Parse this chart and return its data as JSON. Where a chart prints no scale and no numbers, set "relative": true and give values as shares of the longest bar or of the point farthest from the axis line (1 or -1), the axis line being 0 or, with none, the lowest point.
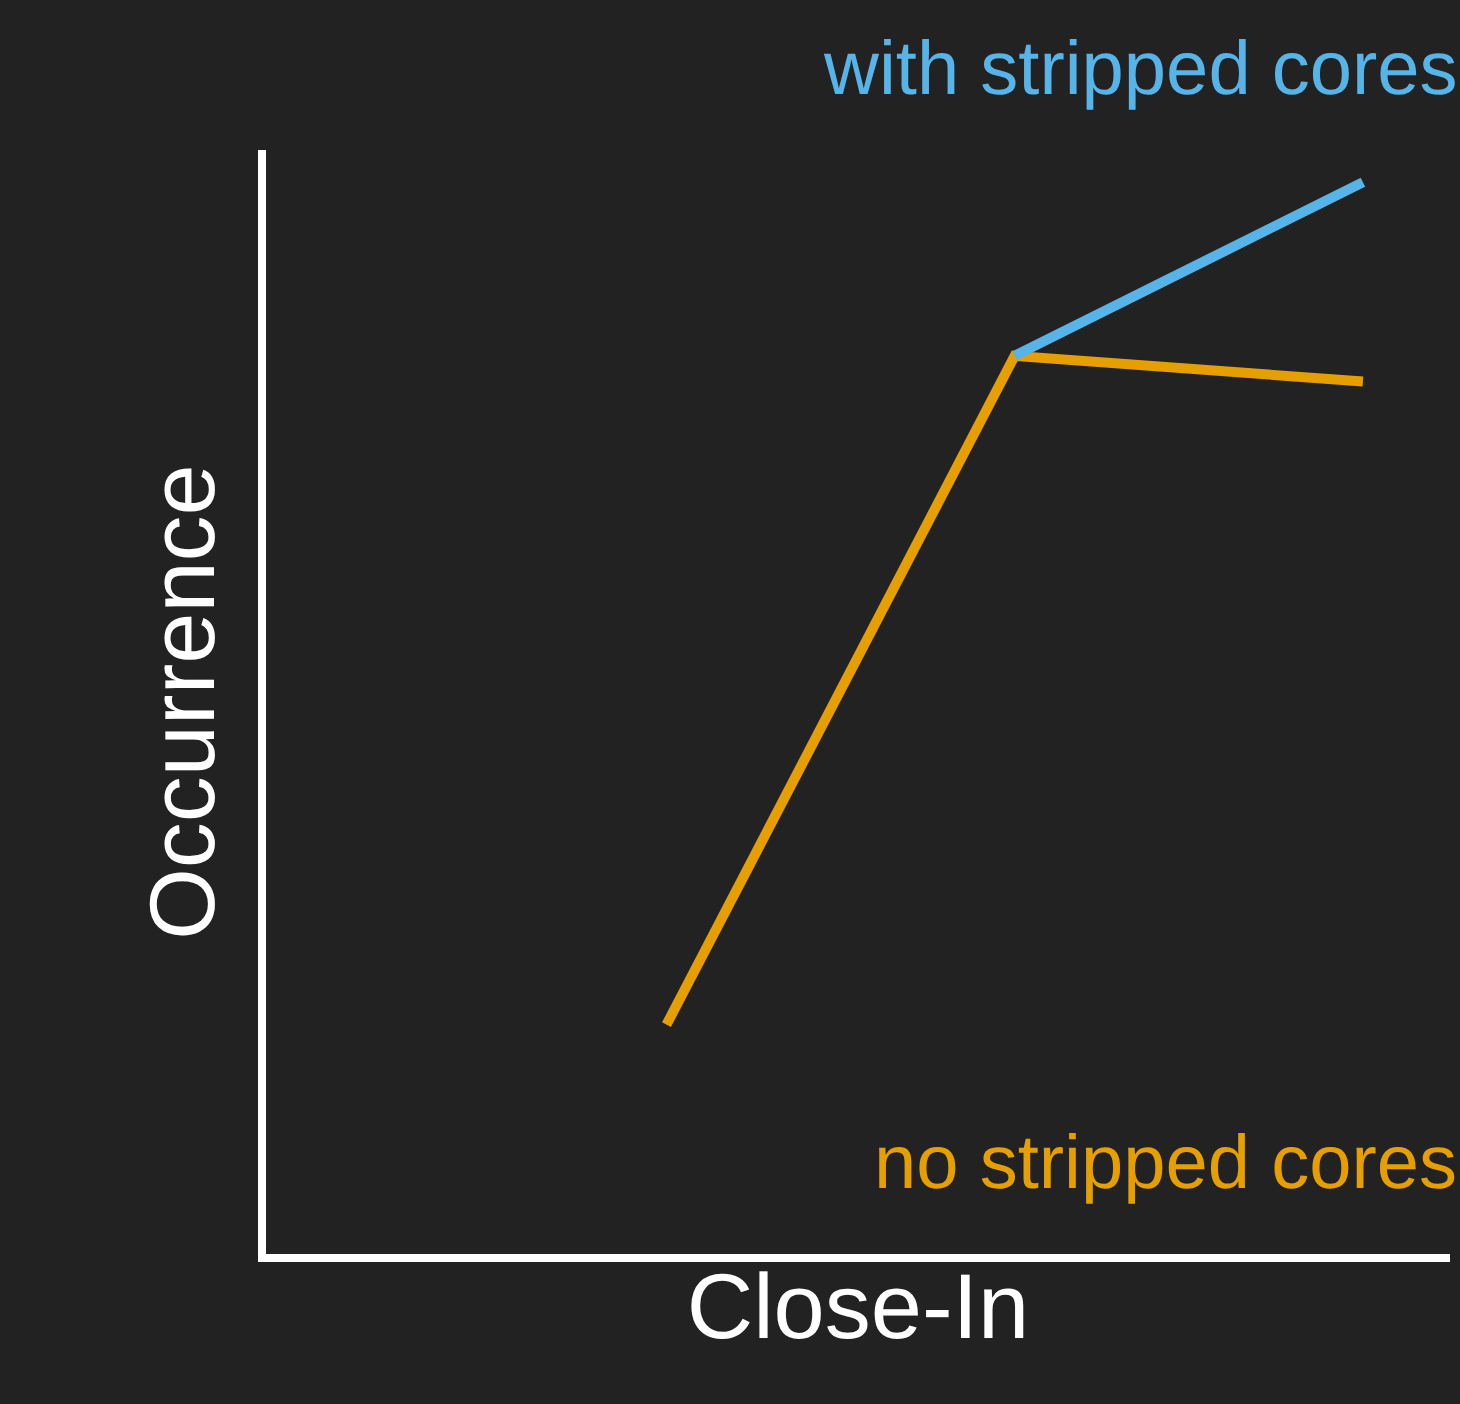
{
  "chart_data": {
    "type": "line",
    "relative": true,
    "xlabel": "Close-In",
    "ylabel": "Occurrence",
    "categories": [
      null,
      null,
      null
    ],
    "legend": false,
    "tick_labels": false,
    "marker": "none",
    "line_style": "solid",
    "series": [
      {
        "name": "no stripped cores",
        "color": "#e69f00",
        "values": [
          0.214,
          0.838,
          0.814
        ]
      },
      {
        "name": "with stripped cores",
        "color": "#56b4e9",
        "values": [
          null,
          0.838,
          1
        ]
      }
    ]
  }
}
